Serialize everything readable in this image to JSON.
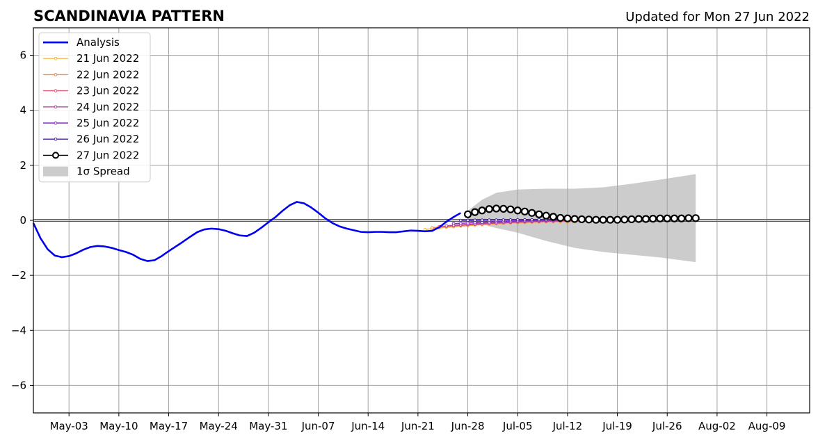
{
  "chart_data": {
    "type": "line",
    "title": "SCANDINAVIA PATTERN",
    "subtitle": "Updated for Mon 27 Jun 2022",
    "xlabel": "",
    "ylabel": "",
    "xlim": [
      "2022-04-28",
      "2022-08-15"
    ],
    "ylim": [
      -7,
      7
    ],
    "grid": true,
    "legend_position": "upper-left",
    "x_ticks": [
      "May-03",
      "May-10",
      "May-17",
      "May-24",
      "May-31",
      "Jun-07",
      "Jun-14",
      "Jun-21",
      "Jun-28",
      "Jul-05",
      "Jul-12",
      "Jul-19",
      "Jul-26",
      "Aug-02",
      "Aug-09"
    ],
    "y_ticks": [
      "−6",
      "−4",
      "−2",
      "0",
      "2",
      "4",
      "6"
    ],
    "y_tick_values": [
      -6,
      -4,
      -2,
      0,
      2,
      4,
      6
    ],
    "analysis": {
      "name": "Analysis",
      "color": "#0000ee",
      "points": [
        [
          "2022-04-28",
          -0.1
        ],
        [
          "2022-04-29",
          -0.65
        ],
        [
          "2022-04-30",
          -1.05
        ],
        [
          "2022-05-01",
          -1.28
        ],
        [
          "2022-05-02",
          -1.34
        ],
        [
          "2022-05-03",
          -1.3
        ],
        [
          "2022-05-04",
          -1.2
        ],
        [
          "2022-05-05",
          -1.07
        ],
        [
          "2022-05-06",
          -0.97
        ],
        [
          "2022-05-07",
          -0.93
        ],
        [
          "2022-05-08",
          -0.95
        ],
        [
          "2022-05-09",
          -1.0
        ],
        [
          "2022-05-10",
          -1.08
        ],
        [
          "2022-05-11",
          -1.15
        ],
        [
          "2022-05-12",
          -1.25
        ],
        [
          "2022-05-13",
          -1.4
        ],
        [
          "2022-05-14",
          -1.48
        ],
        [
          "2022-05-15",
          -1.45
        ],
        [
          "2022-05-16",
          -1.3
        ],
        [
          "2022-05-17",
          -1.12
        ],
        [
          "2022-05-18",
          -0.95
        ],
        [
          "2022-05-19",
          -0.78
        ],
        [
          "2022-05-20",
          -0.6
        ],
        [
          "2022-05-21",
          -0.43
        ],
        [
          "2022-05-22",
          -0.33
        ],
        [
          "2022-05-23",
          -0.3
        ],
        [
          "2022-05-24",
          -0.32
        ],
        [
          "2022-05-25",
          -0.38
        ],
        [
          "2022-05-26",
          -0.47
        ],
        [
          "2022-05-27",
          -0.55
        ],
        [
          "2022-05-28",
          -0.57
        ],
        [
          "2022-05-29",
          -0.45
        ],
        [
          "2022-05-30",
          -0.27
        ],
        [
          "2022-05-31",
          -0.07
        ],
        [
          "2022-06-01",
          0.12
        ],
        [
          "2022-06-02",
          0.35
        ],
        [
          "2022-06-03",
          0.55
        ],
        [
          "2022-06-04",
          0.67
        ],
        [
          "2022-06-05",
          0.62
        ],
        [
          "2022-06-06",
          0.47
        ],
        [
          "2022-06-07",
          0.28
        ],
        [
          "2022-06-08",
          0.07
        ],
        [
          "2022-06-09",
          -0.1
        ],
        [
          "2022-06-10",
          -0.22
        ],
        [
          "2022-06-11",
          -0.3
        ],
        [
          "2022-06-12",
          -0.36
        ],
        [
          "2022-06-13",
          -0.42
        ],
        [
          "2022-06-14",
          -0.43
        ],
        [
          "2022-06-15",
          -0.42
        ],
        [
          "2022-06-16",
          -0.42
        ],
        [
          "2022-06-17",
          -0.43
        ],
        [
          "2022-06-18",
          -0.43
        ],
        [
          "2022-06-19",
          -0.4
        ],
        [
          "2022-06-20",
          -0.37
        ],
        [
          "2022-06-21",
          -0.38
        ],
        [
          "2022-06-22",
          -0.4
        ],
        [
          "2022-06-23",
          -0.38
        ],
        [
          "2022-06-24",
          -0.25
        ],
        [
          "2022-06-25",
          -0.05
        ],
        [
          "2022-06-26",
          0.12
        ],
        [
          "2022-06-27",
          0.27
        ]
      ]
    },
    "forecasts": [
      {
        "name": "21 Jun 2022",
        "color": "#f5b942",
        "start": "2022-06-22",
        "end": "2022-07-13",
        "y0": -0.33,
        "y1": -0.05,
        "marker": "dot"
      },
      {
        "name": "22 Jun 2022",
        "color": "#f0894a",
        "start": "2022-06-23",
        "end": "2022-07-14",
        "y0": -0.27,
        "y1": -0.03,
        "marker": "dot"
      },
      {
        "name": "23 Jun 2022",
        "color": "#e0577a",
        "start": "2022-06-24",
        "end": "2022-07-15",
        "y0": -0.23,
        "y1": -0.02,
        "marker": "dot"
      },
      {
        "name": "24 Jun 2022",
        "color": "#b5439e",
        "start": "2022-06-25",
        "end": "2022-07-16",
        "y0": -0.2,
        "y1": 0.0,
        "marker": "dot"
      },
      {
        "name": "25 Jun 2022",
        "color": "#8a2bc2",
        "start": "2022-06-26",
        "end": "2022-07-17",
        "y0": -0.12,
        "y1": 0.02,
        "marker": "dot"
      },
      {
        "name": "26 Jun 2022",
        "color": "#4b1fa3",
        "start": "2022-06-27",
        "end": "2022-07-18",
        "y0": 0.0,
        "y1": 0.03,
        "marker": "dot"
      },
      {
        "name": "27 Jun 2022",
        "color": "#000000",
        "marker": "circle",
        "points": [
          [
            "2022-06-28",
            0.22
          ],
          [
            "2022-06-29",
            0.3
          ],
          [
            "2022-06-30",
            0.36
          ],
          [
            "2022-07-01",
            0.41
          ],
          [
            "2022-07-02",
            0.43
          ],
          [
            "2022-07-03",
            0.42
          ],
          [
            "2022-07-04",
            0.4
          ],
          [
            "2022-07-05",
            0.36
          ],
          [
            "2022-07-06",
            0.32
          ],
          [
            "2022-07-07",
            0.27
          ],
          [
            "2022-07-08",
            0.22
          ],
          [
            "2022-07-09",
            0.17
          ],
          [
            "2022-07-10",
            0.13
          ],
          [
            "2022-07-11",
            0.09
          ],
          [
            "2022-07-12",
            0.07
          ],
          [
            "2022-07-13",
            0.05
          ],
          [
            "2022-07-14",
            0.04
          ],
          [
            "2022-07-15",
            0.03
          ],
          [
            "2022-07-16",
            0.02
          ],
          [
            "2022-07-17",
            0.02
          ],
          [
            "2022-07-18",
            0.02
          ],
          [
            "2022-07-19",
            0.02
          ],
          [
            "2022-07-20",
            0.03
          ],
          [
            "2022-07-21",
            0.04
          ],
          [
            "2022-07-22",
            0.05
          ],
          [
            "2022-07-23",
            0.05
          ],
          [
            "2022-07-24",
            0.06
          ],
          [
            "2022-07-25",
            0.07
          ],
          [
            "2022-07-26",
            0.07
          ],
          [
            "2022-07-27",
            0.07
          ],
          [
            "2022-07-28",
            0.07
          ],
          [
            "2022-07-29",
            0.08
          ],
          [
            "2022-07-30",
            0.08
          ]
        ]
      }
    ],
    "spread": {
      "name": "1σ Spread",
      "color": "#cccccc",
      "points": [
        [
          "2022-06-28",
          0.35,
          -0.05
        ],
        [
          "2022-06-30",
          0.75,
          -0.15
        ],
        [
          "2022-07-02",
          1.0,
          -0.28
        ],
        [
          "2022-07-05",
          1.12,
          -0.45
        ],
        [
          "2022-07-09",
          1.15,
          -0.75
        ],
        [
          "2022-07-13",
          1.15,
          -1.0
        ],
        [
          "2022-07-17",
          1.2,
          -1.15
        ],
        [
          "2022-07-21",
          1.33,
          -1.25
        ],
        [
          "2022-07-25",
          1.48,
          -1.35
        ],
        [
          "2022-07-30",
          1.68,
          -1.52
        ]
      ]
    }
  }
}
